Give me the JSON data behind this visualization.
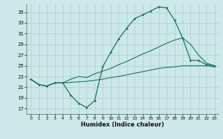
{
  "title": "",
  "xlabel": "Humidex (Indice chaleur)",
  "bg_color": "#cce8e8",
  "grid_color": "#aacccc",
  "line_color": "#1a6b5a",
  "ylim": [
    16,
    36.5
  ],
  "xlim": [
    -0.5,
    23.5
  ],
  "yticks": [
    17,
    19,
    21,
    23,
    25,
    27,
    29,
    31,
    33,
    35
  ],
  "xticks": [
    0,
    1,
    2,
    3,
    4,
    5,
    6,
    7,
    8,
    9,
    10,
    11,
    12,
    13,
    14,
    15,
    16,
    17,
    18,
    19,
    20,
    21,
    22,
    23
  ],
  "line1_x": [
    0,
    1,
    2,
    3,
    4,
    5,
    6,
    7,
    8,
    9,
    10,
    11,
    12,
    13,
    14,
    15,
    16,
    17,
    18,
    19,
    20,
    21,
    22,
    23
  ],
  "line1_y": [
    22.5,
    21.5,
    21.2,
    21.8,
    21.8,
    19.5,
    18.0,
    17.2,
    18.5,
    24.8,
    27.5,
    30.0,
    32.0,
    33.8,
    34.5,
    35.2,
    36.0,
    35.8,
    33.5,
    30.2,
    26.0,
    26.0,
    25.2,
    25.0
  ],
  "line2_x": [
    0,
    1,
    2,
    3,
    4,
    5,
    6,
    7,
    8,
    9,
    10,
    11,
    12,
    13,
    14,
    15,
    16,
    17,
    18,
    19,
    20,
    21,
    22,
    23
  ],
  "line2_y": [
    22.5,
    21.5,
    21.2,
    21.8,
    21.8,
    21.9,
    22.0,
    22.1,
    22.3,
    22.5,
    22.8,
    23.0,
    23.3,
    23.6,
    23.9,
    24.2,
    24.5,
    24.7,
    24.8,
    25.0,
    25.0,
    25.0,
    25.0,
    24.8
  ],
  "line3_x": [
    0,
    1,
    2,
    3,
    4,
    5,
    6,
    7,
    8,
    9,
    10,
    11,
    12,
    13,
    14,
    15,
    16,
    17,
    18,
    19,
    20,
    21,
    22,
    23
  ],
  "line3_y": [
    22.5,
    21.5,
    21.2,
    21.8,
    21.8,
    22.5,
    23.0,
    22.8,
    23.5,
    24.0,
    24.5,
    25.2,
    25.8,
    26.5,
    27.2,
    27.8,
    28.5,
    29.2,
    29.8,
    30.2,
    29.0,
    27.0,
    25.5,
    25.0
  ]
}
